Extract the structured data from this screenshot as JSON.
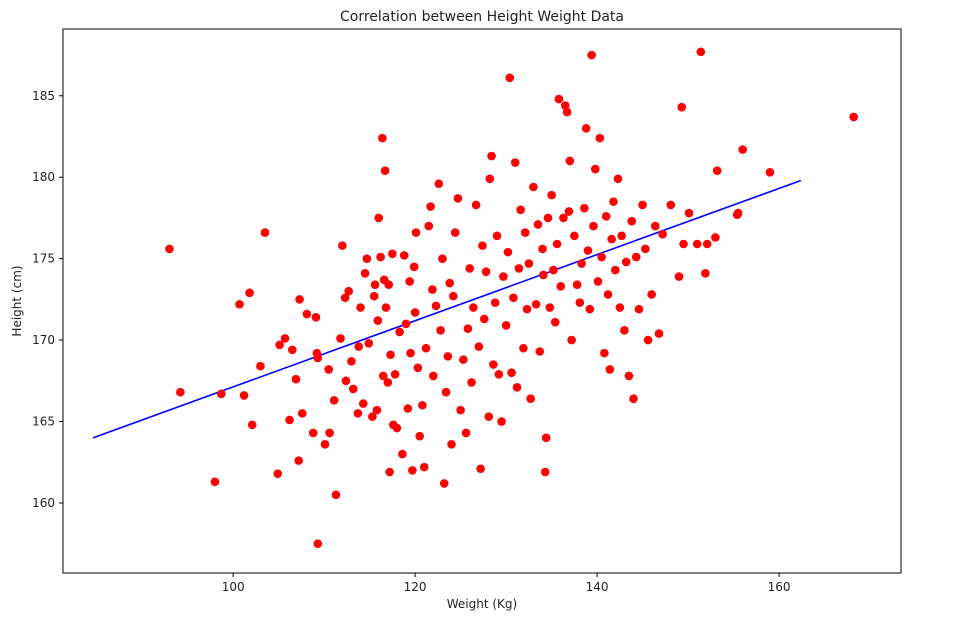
{
  "chart_data": {
    "type": "scatter",
    "title": "Correlation between Height Weight Data",
    "xlabel": "Weight (Kg)",
    "ylabel": "Height (cm)",
    "xlim": [
      81.3,
      173.4
    ],
    "ylim": [
      155.7,
      189.1
    ],
    "xticks": [
      100,
      120,
      140,
      160
    ],
    "yticks": [
      160,
      165,
      170,
      175,
      180,
      185
    ],
    "grid": false,
    "colors": {
      "points": "#ff0000",
      "fit_line": "#0000ff",
      "axes": "#000000"
    },
    "series": [
      {
        "kind": "points",
        "points": [
          [
            93.0,
            175.6
          ],
          [
            94.2,
            166.8
          ],
          [
            98.0,
            161.3
          ],
          [
            98.7,
            166.7
          ],
          [
            100.7,
            172.2
          ],
          [
            101.2,
            166.6
          ],
          [
            101.8,
            172.9
          ],
          [
            102.1,
            164.8
          ],
          [
            103.0,
            168.4
          ],
          [
            103.5,
            176.6
          ],
          [
            104.9,
            161.8
          ],
          [
            105.1,
            169.7
          ],
          [
            105.7,
            170.1
          ],
          [
            106.2,
            165.1
          ],
          [
            106.5,
            169.4
          ],
          [
            106.9,
            167.6
          ],
          [
            107.2,
            162.6
          ],
          [
            107.3,
            172.5
          ],
          [
            107.6,
            165.5
          ],
          [
            108.1,
            171.6
          ],
          [
            108.8,
            164.3
          ],
          [
            109.1,
            171.4
          ],
          [
            109.2,
            169.2
          ],
          [
            109.3,
            157.5
          ],
          [
            109.3,
            168.9
          ],
          [
            110.1,
            163.6
          ],
          [
            110.5,
            168.2
          ],
          [
            110.6,
            164.3
          ],
          [
            111.1,
            166.3
          ],
          [
            111.3,
            160.5
          ],
          [
            111.8,
            170.1
          ],
          [
            112.0,
            175.8
          ],
          [
            112.3,
            172.6
          ],
          [
            112.4,
            167.5
          ],
          [
            112.7,
            173.0
          ],
          [
            113.0,
            168.7
          ],
          [
            113.2,
            167.0
          ],
          [
            113.7,
            165.5
          ],
          [
            113.8,
            169.6
          ],
          [
            114.0,
            172.0
          ],
          [
            114.3,
            166.1
          ],
          [
            114.5,
            174.1
          ],
          [
            114.7,
            175.0
          ],
          [
            114.9,
            169.8
          ],
          [
            115.3,
            165.3
          ],
          [
            115.5,
            172.7
          ],
          [
            115.6,
            173.4
          ],
          [
            115.8,
            165.7
          ],
          [
            115.9,
            171.2
          ],
          [
            116.0,
            177.5
          ],
          [
            116.2,
            175.1
          ],
          [
            116.4,
            182.4
          ],
          [
            116.5,
            167.8
          ],
          [
            116.6,
            173.7
          ],
          [
            116.7,
            180.4
          ],
          [
            116.8,
            172.0
          ],
          [
            117.0,
            167.4
          ],
          [
            117.1,
            173.4
          ],
          [
            117.2,
            161.9
          ],
          [
            117.3,
            169.1
          ],
          [
            117.5,
            175.3
          ],
          [
            117.6,
            164.8
          ],
          [
            117.8,
            167.9
          ],
          [
            118.0,
            164.6
          ],
          [
            118.3,
            170.5
          ],
          [
            118.6,
            163.0
          ],
          [
            118.8,
            175.2
          ],
          [
            119.0,
            171.0
          ],
          [
            119.2,
            165.8
          ],
          [
            119.4,
            173.6
          ],
          [
            119.5,
            169.2
          ],
          [
            119.7,
            162.0
          ],
          [
            119.9,
            174.5
          ],
          [
            120.0,
            171.7
          ],
          [
            120.1,
            176.6
          ],
          [
            120.3,
            168.3
          ],
          [
            120.5,
            164.1
          ],
          [
            120.8,
            166.0
          ],
          [
            121.0,
            162.2
          ],
          [
            121.2,
            169.5
          ],
          [
            121.5,
            177.0
          ],
          [
            121.7,
            178.2
          ],
          [
            121.9,
            173.1
          ],
          [
            122.0,
            167.8
          ],
          [
            122.3,
            172.1
          ],
          [
            122.6,
            179.6
          ],
          [
            122.8,
            170.6
          ],
          [
            123.0,
            175.0
          ],
          [
            123.2,
            161.2
          ],
          [
            123.4,
            166.8
          ],
          [
            123.6,
            169.0
          ],
          [
            123.8,
            173.5
          ],
          [
            124.0,
            163.6
          ],
          [
            124.2,
            172.7
          ],
          [
            124.4,
            176.6
          ],
          [
            124.7,
            178.7
          ],
          [
            125.0,
            165.7
          ],
          [
            125.3,
            168.8
          ],
          [
            125.6,
            164.3
          ],
          [
            125.8,
            170.7
          ],
          [
            126.0,
            174.4
          ],
          [
            126.2,
            167.4
          ],
          [
            126.4,
            172.0
          ],
          [
            126.7,
            178.3
          ],
          [
            127.0,
            169.6
          ],
          [
            127.2,
            162.1
          ],
          [
            127.4,
            175.8
          ],
          [
            127.6,
            171.3
          ],
          [
            127.8,
            174.2
          ],
          [
            128.1,
            165.3
          ],
          [
            128.2,
            179.9
          ],
          [
            128.4,
            181.3
          ],
          [
            128.6,
            168.5
          ],
          [
            128.8,
            172.3
          ],
          [
            129.0,
            176.4
          ],
          [
            129.2,
            167.9
          ],
          [
            129.5,
            165.0
          ],
          [
            129.7,
            173.9
          ],
          [
            130.0,
            170.9
          ],
          [
            130.2,
            175.4
          ],
          [
            130.4,
            186.1
          ],
          [
            130.6,
            168.0
          ],
          [
            130.8,
            172.6
          ],
          [
            131.0,
            180.9
          ],
          [
            131.2,
            167.1
          ],
          [
            131.4,
            174.4
          ],
          [
            131.6,
            178.0
          ],
          [
            131.9,
            169.5
          ],
          [
            132.1,
            176.6
          ],
          [
            132.3,
            171.9
          ],
          [
            132.5,
            174.7
          ],
          [
            132.7,
            166.4
          ],
          [
            133.0,
            179.4
          ],
          [
            133.3,
            172.2
          ],
          [
            133.5,
            177.1
          ],
          [
            133.7,
            169.3
          ],
          [
            134.0,
            175.6
          ],
          [
            134.1,
            174.0
          ],
          [
            134.3,
            161.9
          ],
          [
            134.4,
            164.0
          ],
          [
            134.6,
            177.5
          ],
          [
            134.8,
            172.0
          ],
          [
            135.0,
            178.9
          ],
          [
            135.2,
            174.3
          ],
          [
            135.4,
            171.1
          ],
          [
            135.6,
            175.9
          ],
          [
            135.8,
            184.8
          ],
          [
            136.0,
            173.3
          ],
          [
            136.3,
            177.5
          ],
          [
            136.5,
            184.4
          ],
          [
            136.7,
            184.0
          ],
          [
            136.9,
            177.9
          ],
          [
            137.0,
            181.0
          ],
          [
            137.2,
            170.0
          ],
          [
            137.5,
            176.4
          ],
          [
            137.8,
            173.4
          ],
          [
            138.1,
            172.3
          ],
          [
            138.3,
            174.7
          ],
          [
            138.6,
            178.1
          ],
          [
            138.8,
            183.0
          ],
          [
            139.0,
            175.5
          ],
          [
            139.2,
            171.9
          ],
          [
            139.4,
            187.5
          ],
          [
            139.6,
            177.0
          ],
          [
            139.8,
            180.5
          ],
          [
            140.1,
            173.6
          ],
          [
            140.3,
            182.4
          ],
          [
            140.5,
            175.1
          ],
          [
            140.8,
            169.2
          ],
          [
            141.0,
            177.6
          ],
          [
            141.2,
            172.8
          ],
          [
            141.4,
            168.2
          ],
          [
            141.6,
            176.2
          ],
          [
            141.8,
            178.5
          ],
          [
            142.0,
            174.3
          ],
          [
            142.3,
            179.9
          ],
          [
            142.5,
            172.0
          ],
          [
            142.7,
            176.4
          ],
          [
            143.0,
            170.6
          ],
          [
            143.2,
            174.8
          ],
          [
            143.5,
            167.8
          ],
          [
            143.8,
            177.3
          ],
          [
            144.0,
            166.4
          ],
          [
            144.3,
            175.1
          ],
          [
            144.6,
            171.9
          ],
          [
            145.0,
            178.3
          ],
          [
            145.3,
            175.6
          ],
          [
            145.6,
            170.0
          ],
          [
            146.0,
            172.8
          ],
          [
            146.4,
            177.0
          ],
          [
            146.8,
            170.4
          ],
          [
            147.2,
            176.5
          ],
          [
            148.1,
            178.3
          ],
          [
            149.0,
            173.9
          ],
          [
            149.3,
            184.3
          ],
          [
            149.5,
            175.9
          ],
          [
            150.1,
            177.8
          ],
          [
            151.0,
            175.9
          ],
          [
            151.4,
            187.7
          ],
          [
            151.9,
            174.1
          ],
          [
            152.1,
            175.9
          ],
          [
            153.0,
            176.3
          ],
          [
            153.2,
            180.4
          ],
          [
            155.4,
            177.7
          ],
          [
            155.5,
            177.8
          ],
          [
            156.0,
            181.7
          ],
          [
            159.0,
            180.3
          ],
          [
            168.2,
            183.7
          ]
        ]
      },
      {
        "kind": "line",
        "points": [
          [
            84.6,
            164.0
          ],
          [
            162.4,
            179.8
          ]
        ]
      }
    ]
  }
}
